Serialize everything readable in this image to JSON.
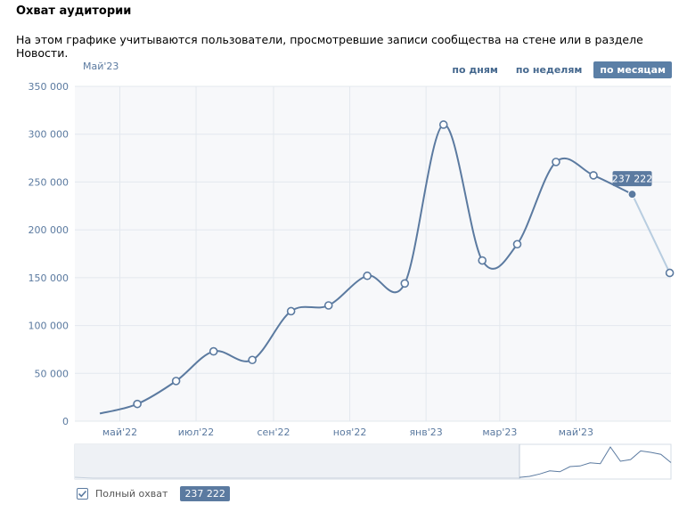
{
  "header": {
    "title": "Охват аудитории",
    "subtitle": "На этом графике учитываются пользователи, просмотревшие записи сообщества на стене или в разделе Новости."
  },
  "period_label": "Май'23",
  "tabs": [
    {
      "label": "по дням",
      "active": false
    },
    {
      "label": "по неделям",
      "active": false
    },
    {
      "label": "по месяцам",
      "active": true
    }
  ],
  "tooltip": {
    "value_label": "237 222"
  },
  "legend": {
    "label": "Полный охват",
    "value": "237 222",
    "checked": true
  },
  "colors": {
    "line": "#5b7aa0",
    "line_light": "#b8cde0",
    "grid": "#e3e8ee",
    "plot_bg": "#f7f8fa"
  },
  "chart_data": {
    "type": "line",
    "title": "Охват аудитории",
    "ylim": [
      0,
      350000
    ],
    "y_ticks": [
      0,
      50000,
      100000,
      150000,
      200000,
      250000,
      300000,
      350000
    ],
    "y_tick_labels": [
      "0",
      "50 000",
      "100 000",
      "150 000",
      "200 000",
      "250 000",
      "300 000",
      "350 000"
    ],
    "x_ticks": [
      "2022-05",
      "2022-07",
      "2022-09",
      "2022-11",
      "2023-01",
      "2023-03",
      "2023-05"
    ],
    "x_tick_labels": [
      "май'22",
      "июл'22",
      "сен'22",
      "ноя'22",
      "янв'23",
      "мар'23",
      "май'23"
    ],
    "xlim": [
      "2022-03-26",
      "2023-07-16"
    ],
    "series": [
      {
        "name": "Полный охват",
        "x": [
          "2022-04-15",
          "2022-05-15",
          "2022-06-15",
          "2022-07-15",
          "2022-08-15",
          "2022-09-15",
          "2022-10-15",
          "2022-11-15",
          "2022-12-15",
          "2023-01-15",
          "2023-02-15",
          "2023-03-15",
          "2023-04-15",
          "2023-05-15",
          "2023-06-15",
          "2023-07-15"
        ],
        "values": [
          8000,
          18000,
          42000,
          73000,
          64000,
          115000,
          121000,
          152000,
          144000,
          310000,
          168000,
          185000,
          271000,
          257000,
          237222,
          155000
        ],
        "highlight_index": 14,
        "partial_from_index": 14
      }
    ],
    "grid": true,
    "navigator": true,
    "legend_position": "bottom-left"
  }
}
